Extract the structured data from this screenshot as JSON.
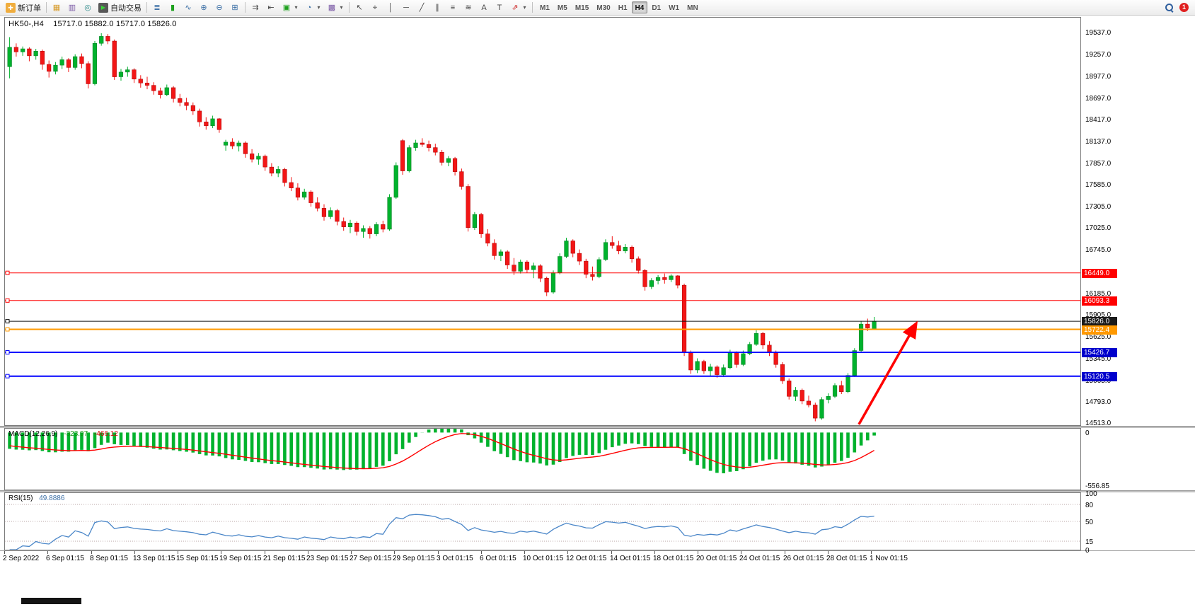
{
  "toolbar": {
    "new_order": "新订单",
    "auto_trading": "自动交易",
    "timeframes": [
      "M1",
      "M5",
      "M15",
      "M30",
      "H1",
      "H4",
      "D1",
      "W1",
      "MN"
    ],
    "active_timeframe": "H4",
    "notification_count": "1"
  },
  "icons": {
    "new_order": "✚",
    "market_watch": "▦",
    "data_window": "▥",
    "navigator": "◎",
    "auto_play": "▶",
    "bars_mode": "≣",
    "candles_mode": "▮",
    "line_mode": "∿",
    "zoom_in": "⊕",
    "zoom_out": "⊖",
    "tile_windows": "⊞",
    "auto_scroll": "⇉",
    "chart_shift": "⇤",
    "new_chart": "▣",
    "periods": "◔",
    "templates": "▩",
    "dropdown": "▾",
    "cursor": "↖",
    "crosshair": "⌖",
    "vline": "│",
    "hline": "─",
    "trendline": "╱",
    "channel": "∥",
    "fibonacci": "≡",
    "waves": "≋",
    "text": "A",
    "text_label": "T",
    "arrows": "⇗"
  },
  "colors": {
    "up": "#00b22d",
    "up_dark": "#007a1f",
    "down": "#f21616",
    "down_dark": "#a80000",
    "macd_bar": "#00b22d",
    "macd_signal": "#ff0000",
    "rsi_line": "#4a86c8"
  },
  "chart_data": {
    "type": "candlestick",
    "title": "HK50-,H4",
    "ohlc_display": "15717.0 15882.0 15717.0 15826.0",
    "layout": {
      "price_min": 14490,
      "price_max": 19730,
      "candle_region": 0.81,
      "time_span": 0.806,
      "grid": false
    },
    "price_axis_ticks": [
      "19537.0",
      "19257.0",
      "18977.0",
      "18697.0",
      "18417.0",
      "18137.0",
      "17857.0",
      "17585.0",
      "17305.0",
      "17025.0",
      "16745.0",
      "16185.0",
      "15905.0",
      "15625.0",
      "15345.0",
      "15065.0",
      "14793.0",
      "14513.0"
    ],
    "time_labels": [
      "2 Sep 2022",
      "6 Sep 01:15",
      "8 Sep 01:15",
      "13 Sep 01:15",
      "15 Sep 01:15",
      "19 Sep 01:15",
      "21 Sep 01:15",
      "23 Sep 01:15",
      "27 Sep 01:15",
      "29 Sep 01:15",
      "3 Oct 01:15",
      "6 Oct 01:15",
      "10 Oct 01:15",
      "12 Oct 01:15",
      "14 Oct 01:15",
      "18 Oct 01:15",
      "20 Oct 01:15",
      "24 Oct 01:15",
      "26 Oct 01:15",
      "28 Oct 01:15",
      "1 Nov 01:15"
    ],
    "hlines": [
      {
        "name": "resistance-16449",
        "price": 16449.0,
        "label": "16449.0",
        "color": "#ff0000",
        "badge": "#ff0000",
        "width": 1
      },
      {
        "name": "resistance-16093",
        "price": 16093.3,
        "label": "16093.3",
        "color": "#ff0000",
        "badge": "#ff0000",
        "width": 1
      },
      {
        "name": "current-price",
        "price": 15826.0,
        "label": "15826.0",
        "color": "#111111",
        "badge": "#1a1a1a",
        "width": 1
      },
      {
        "name": "pivot-15722",
        "price": 15722.4,
        "label": "15722.4",
        "color": "#ff9900",
        "badge": "#ff9900",
        "width": 2
      },
      {
        "name": "support-15426",
        "price": 15426.7,
        "label": "15426.7",
        "color": "#0000ff",
        "badge": "#0000cc",
        "width": 2
      },
      {
        "name": "support-15120",
        "price": 15120.5,
        "label": "15120.5",
        "color": "#0000ff",
        "badge": "#0000cc",
        "width": 2
      }
    ],
    "annotation_arrow": {
      "x1_frac": 0.794,
      "price1": 14500,
      "x2_frac": 0.847,
      "price2": 15790,
      "color": "#ff0000"
    },
    "indicators": [
      {
        "name": "MACD",
        "label": "MACD(12,26,9)",
        "values": [
          "-323.97",
          "-466.12"
        ],
        "axis": [
          "0",
          "-556.85"
        ],
        "params": [
          12,
          26,
          9
        ]
      },
      {
        "name": "RSI",
        "label": "RSI(15)",
        "values": [
          "49.8886"
        ],
        "axis": [
          "100",
          "80",
          "50",
          "15",
          "0"
        ],
        "levels": [
          80,
          50,
          15
        ],
        "params": [
          15
        ]
      }
    ],
    "candles": [
      [
        19100,
        19480,
        18950,
        19350
      ],
      [
        19350,
        19400,
        19230,
        19290
      ],
      [
        19290,
        19360,
        19240,
        19330
      ],
      [
        19330,
        19350,
        19170,
        19240
      ],
      [
        19240,
        19330,
        19190,
        19300
      ],
      [
        19300,
        19320,
        19060,
        19130
      ],
      [
        19130,
        19180,
        18960,
        19040
      ],
      [
        19040,
        19160,
        19000,
        19120
      ],
      [
        19120,
        19230,
        19070,
        19190
      ],
      [
        19190,
        19210,
        19030,
        19090
      ],
      [
        19090,
        19260,
        19060,
        19230
      ],
      [
        19230,
        19270,
        19080,
        19140
      ],
      [
        19140,
        19170,
        18820,
        18880
      ],
      [
        18880,
        19430,
        18860,
        19400
      ],
      [
        19400,
        19530,
        19370,
        19490
      ],
      [
        19490,
        19520,
        19390,
        19430
      ],
      [
        19430,
        19450,
        18930,
        18970
      ],
      [
        18970,
        19070,
        18920,
        19030
      ],
      [
        19030,
        19100,
        18970,
        19060
      ],
      [
        19060,
        19080,
        18890,
        18940
      ],
      [
        18940,
        18990,
        18830,
        18890
      ],
      [
        18890,
        18970,
        18810,
        18860
      ],
      [
        18860,
        18900,
        18740,
        18790
      ],
      [
        18790,
        18830,
        18690,
        18740
      ],
      [
        18740,
        18870,
        18720,
        18830
      ],
      [
        18830,
        18850,
        18640,
        18690
      ],
      [
        18690,
        18750,
        18590,
        18640
      ],
      [
        18640,
        18700,
        18540,
        18600
      ],
      [
        18600,
        18640,
        18480,
        18530
      ],
      [
        18530,
        18560,
        18330,
        18390
      ],
      [
        18390,
        18450,
        18290,
        18340
      ],
      [
        18340,
        18470,
        18310,
        18430
      ],
      [
        18430,
        18440,
        18250,
        18290
      ],
      [
        18090,
        18160,
        18020,
        18130
      ],
      [
        18130,
        18180,
        18040,
        18080
      ],
      [
        18080,
        18150,
        18010,
        18120
      ],
      [
        18120,
        18140,
        17930,
        17980
      ],
      [
        17980,
        18040,
        17870,
        17910
      ],
      [
        17910,
        17990,
        17840,
        17950
      ],
      [
        17950,
        17970,
        17760,
        17810
      ],
      [
        17810,
        17860,
        17690,
        17730
      ],
      [
        17730,
        17820,
        17680,
        17780
      ],
      [
        17780,
        17800,
        17560,
        17610
      ],
      [
        17610,
        17680,
        17500,
        17540
      ],
      [
        17540,
        17600,
        17380,
        17420
      ],
      [
        17420,
        17530,
        17390,
        17490
      ],
      [
        17490,
        17510,
        17300,
        17350
      ],
      [
        17350,
        17420,
        17240,
        17280
      ],
      [
        17280,
        17330,
        17120,
        17170
      ],
      [
        17170,
        17290,
        17140,
        17250
      ],
      [
        17250,
        17270,
        17060,
        17110
      ],
      [
        17110,
        17160,
        16990,
        17040
      ],
      [
        17040,
        17130,
        16960,
        17090
      ],
      [
        17090,
        17110,
        16930,
        16980
      ],
      [
        16980,
        17060,
        16900,
        17020
      ],
      [
        17020,
        17050,
        16890,
        16950
      ],
      [
        16950,
        17100,
        16920,
        17070
      ],
      [
        17070,
        17120,
        16970,
        17010
      ],
      [
        17010,
        17460,
        16990,
        17420
      ],
      [
        17420,
        17870,
        17400,
        17830
      ],
      [
        18150,
        18170,
        17710,
        17760
      ],
      [
        17760,
        18090,
        17740,
        18060
      ],
      [
        18060,
        18160,
        18020,
        18120
      ],
      [
        18120,
        18180,
        18070,
        18100
      ],
      [
        18100,
        18150,
        18010,
        18060
      ],
      [
        18060,
        18110,
        17960,
        18000
      ],
      [
        18000,
        18030,
        17830,
        17870
      ],
      [
        17870,
        17950,
        17820,
        17920
      ],
      [
        17920,
        17940,
        17700,
        17750
      ],
      [
        17750,
        17790,
        17520,
        17560
      ],
      [
        17560,
        17590,
        16980,
        17030
      ],
      [
        17030,
        17230,
        17000,
        17200
      ],
      [
        17200,
        17220,
        16900,
        16950
      ],
      [
        16950,
        17010,
        16790,
        16830
      ],
      [
        16830,
        16880,
        16620,
        16670
      ],
      [
        16670,
        16750,
        16600,
        16720
      ],
      [
        16720,
        16740,
        16500,
        16550
      ],
      [
        16550,
        16640,
        16420,
        16470
      ],
      [
        16470,
        16620,
        16440,
        16590
      ],
      [
        16590,
        16610,
        16450,
        16490
      ],
      [
        16490,
        16580,
        16380,
        16540
      ],
      [
        16540,
        16560,
        16330,
        16380
      ],
      [
        16380,
        16400,
        16150,
        16200
      ],
      [
        16200,
        16480,
        16180,
        16450
      ],
      [
        16450,
        16700,
        16430,
        16660
      ],
      [
        16660,
        16900,
        16640,
        16860
      ],
      [
        16860,
        16880,
        16650,
        16700
      ],
      [
        16700,
        16750,
        16550,
        16600
      ],
      [
        16600,
        16630,
        16380,
        16430
      ],
      [
        16430,
        16530,
        16350,
        16400
      ],
      [
        16400,
        16650,
        16380,
        16620
      ],
      [
        16620,
        16880,
        16600,
        16840
      ],
      [
        16840,
        16920,
        16760,
        16800
      ],
      [
        16800,
        16860,
        16690,
        16730
      ],
      [
        16730,
        16820,
        16700,
        16780
      ],
      [
        16780,
        16800,
        16580,
        16630
      ],
      [
        16630,
        16660,
        16440,
        16480
      ],
      [
        16480,
        16500,
        16220,
        16270
      ],
      [
        16270,
        16380,
        16240,
        16350
      ],
      [
        16350,
        16420,
        16300,
        16390
      ],
      [
        16390,
        16440,
        16310,
        16360
      ],
      [
        16360,
        16430,
        16330,
        16410
      ],
      [
        16410,
        16420,
        16250,
        16290
      ],
      [
        16290,
        16310,
        15380,
        15420
      ],
      [
        15420,
        15450,
        15150,
        15200
      ],
      [
        15200,
        15350,
        15160,
        15310
      ],
      [
        15310,
        15330,
        15150,
        15190
      ],
      [
        15190,
        15280,
        15120,
        15240
      ],
      [
        15240,
        15260,
        15100,
        15140
      ],
      [
        15140,
        15270,
        15110,
        15230
      ],
      [
        15230,
        15460,
        15210,
        15420
      ],
      [
        15420,
        15440,
        15230,
        15270
      ],
      [
        15270,
        15450,
        15250,
        15410
      ],
      [
        15410,
        15560,
        15390,
        15530
      ],
      [
        15530,
        15710,
        15510,
        15670
      ],
      [
        15670,
        15690,
        15470,
        15520
      ],
      [
        15520,
        15570,
        15380,
        15420
      ],
      [
        15420,
        15450,
        15230,
        15270
      ],
      [
        15270,
        15300,
        15020,
        15060
      ],
      [
        15060,
        15090,
        14820,
        14860
      ],
      [
        14860,
        14980,
        14800,
        14940
      ],
      [
        14940,
        14960,
        14760,
        14800
      ],
      [
        14800,
        14870,
        14720,
        14750
      ],
      [
        14750,
        14780,
        14540,
        14580
      ],
      [
        14580,
        14850,
        14560,
        14820
      ],
      [
        14820,
        14900,
        14770,
        14860
      ],
      [
        14860,
        15030,
        14840,
        15000
      ],
      [
        15000,
        15060,
        14890,
        14920
      ],
      [
        14920,
        15160,
        14900,
        15130
      ],
      [
        15130,
        15480,
        15110,
        15450
      ],
      [
        15450,
        15830,
        15430,
        15790
      ],
      [
        15790,
        15860,
        15700,
        15740
      ],
      [
        15717,
        15882,
        15717,
        15826
      ]
    ]
  }
}
